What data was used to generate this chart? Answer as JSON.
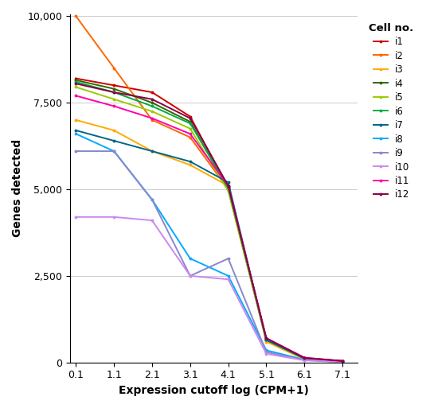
{
  "x": [
    0.1,
    1.1,
    2.1,
    3.1,
    4.1,
    5.1,
    6.1,
    7.1
  ],
  "series": {
    "i1": [
      8200,
      8000,
      7800,
      7100,
      5050,
      650,
      130,
      40
    ],
    "i2": [
      10000,
      8500,
      7000,
      6500,
      5000,
      650,
      100,
      25
    ],
    "i3": [
      7000,
      6700,
      6100,
      5700,
      5100,
      600,
      90,
      20
    ],
    "i4": [
      8150,
      7900,
      7500,
      6950,
      5000,
      650,
      120,
      38
    ],
    "i5": [
      7950,
      7600,
      7250,
      6750,
      4950,
      640,
      110,
      35
    ],
    "i6": [
      8100,
      7800,
      7400,
      6900,
      5050,
      660,
      115,
      37
    ],
    "i7": [
      6700,
      6400,
      6100,
      5800,
      5200,
      650,
      120,
      38
    ],
    "i8": [
      6600,
      6100,
      4700,
      3000,
      2500,
      350,
      80,
      20
    ],
    "i9": [
      6100,
      6100,
      4700,
      2500,
      3000,
      300,
      70,
      15
    ],
    "i10": [
      4200,
      4200,
      4100,
      2500,
      2400,
      250,
      60,
      12
    ],
    "i11": [
      7700,
      7400,
      7050,
      6600,
      5100,
      700,
      140,
      45
    ],
    "i12": [
      8050,
      7800,
      7600,
      7050,
      5100,
      700,
      130,
      42
    ]
  },
  "colors": {
    "i1": "#cc0000",
    "i2": "#ff6600",
    "i3": "#ffaa00",
    "i4": "#336600",
    "i5": "#99cc00",
    "i6": "#00aa44",
    "i7": "#006688",
    "i8": "#00aaff",
    "i9": "#8888cc",
    "i10": "#cc88ee",
    "i11": "#ff00aa",
    "i12": "#880044"
  },
  "xlabel": "Expression cutoff log (CPM+1)",
  "ylabel": "Genes detected",
  "legend_title": "Cell no.",
  "xlim": [
    0.1,
    7.1
  ],
  "ylim": [
    0,
    10000
  ],
  "yticks": [
    0,
    2500,
    5000,
    7500,
    10000
  ],
  "xticks": [
    0.1,
    1.1,
    2.1,
    3.1,
    4.1,
    5.1,
    6.1,
    7.1
  ]
}
